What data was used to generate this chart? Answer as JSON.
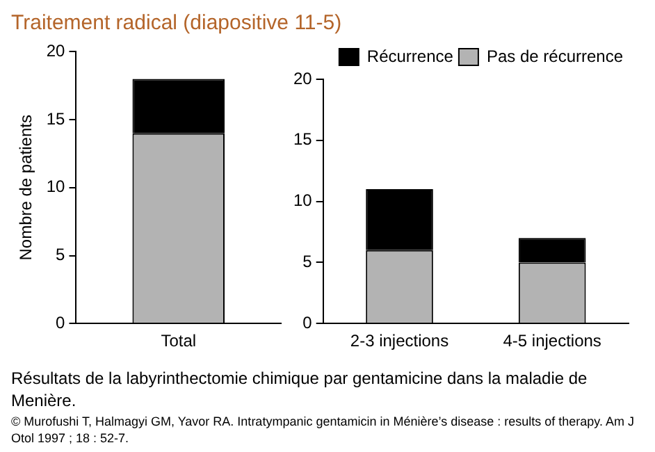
{
  "chart_data": [
    {
      "type": "bar",
      "title": "Traitement radical (diapositive 11-5)",
      "ylabel": "Nombre de patients",
      "categories": [
        "Total"
      ],
      "stacked": true,
      "ylim": [
        0,
        20
      ],
      "yticks": [
        0,
        5,
        10,
        15,
        20
      ],
      "grid": false,
      "legend": false,
      "series": [
        {
          "color": "#b3b3b3",
          "values": [
            14
          ]
        },
        {
          "color": "#000000",
          "values": [
            4
          ]
        }
      ]
    },
    {
      "type": "bar",
      "categories": [
        "2-3 injections",
        "4-5 injections"
      ],
      "stacked": true,
      "ylim": [
        0,
        20
      ],
      "yticks": [
        0,
        5,
        10,
        15,
        20
      ],
      "grid": false,
      "legend": "top right",
      "series": [
        {
          "name": "Pas de récurrence",
          "color": "#b3b3b3",
          "values": [
            6,
            5
          ]
        },
        {
          "name": "Récurrence",
          "color": "#000000",
          "values": [
            5,
            2
          ]
        }
      ],
      "annotations": [
        "Résultats de la labyrinthectomie chimique par gentamicine dans la maladie de Menière.",
        "© Murofushi T, Halmagyi GM, Yavor RA. Intratympanic gentamicin in Ménière’s disease : results of therapy. Am J Otol 1997 ; 18 : 52-7."
      ]
    }
  ]
}
